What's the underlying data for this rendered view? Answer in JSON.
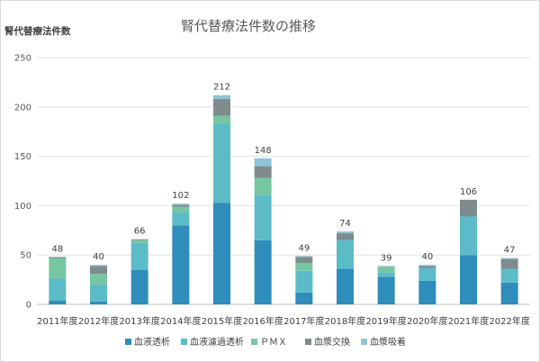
{
  "chart_data": {
    "type": "bar",
    "stacked": true,
    "title": "腎代替療法件数の推移",
    "ylabel": "腎代替療法件数",
    "xlabel": "",
    "ylim": [
      0,
      250
    ],
    "yticks": [
      0,
      50,
      100,
      150,
      200,
      250
    ],
    "grid": true,
    "legend_position": "bottom",
    "categories": [
      "2011年度",
      "2012年度",
      "2013年度",
      "2014年度",
      "2015年度",
      "2016年度",
      "2017年度",
      "2018年度",
      "2019年度",
      "2020年度",
      "2021年度",
      "2022年度"
    ],
    "totals": [
      48,
      40,
      66,
      102,
      212,
      148,
      49,
      74,
      39,
      40,
      106,
      47
    ],
    "series": [
      {
        "name": "血液透析",
        "color": "#2e8dbb",
        "values": [
          4,
          3,
          35,
          80,
          103,
          65,
          12,
          36,
          28,
          24,
          50,
          22
        ]
      },
      {
        "name": "血液濾過透析",
        "color": "#5bbcc8",
        "values": [
          22,
          17,
          27,
          13,
          80,
          46,
          22,
          29,
          4,
          13,
          39,
          14
        ]
      },
      {
        "name": "ＰＭＸ",
        "color": "#77c6a2",
        "values": [
          21,
          11,
          3,
          6,
          8,
          17,
          8,
          0,
          6,
          0,
          0,
          0
        ]
      },
      {
        "name": "血漿交換",
        "color": "#7f8c8d",
        "values": [
          1,
          8,
          1,
          2,
          17,
          12,
          6,
          7,
          0,
          2,
          17,
          10
        ]
      },
      {
        "name": "血漿吸着",
        "color": "#8fc3d8",
        "values": [
          0,
          1,
          0,
          1,
          4,
          8,
          1,
          2,
          1,
          1,
          0,
          1
        ]
      }
    ]
  }
}
